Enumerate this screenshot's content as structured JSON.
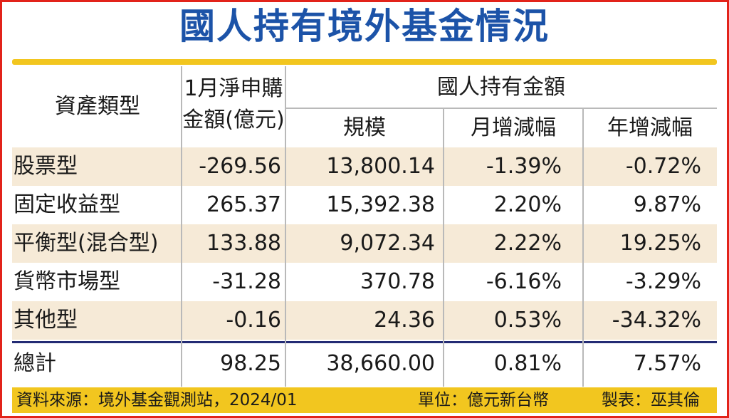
{
  "title": "國人持有境外基金情況",
  "header": {
    "asset_type": "資產類型",
    "net_sub_line1": "1月淨申購",
    "net_sub_line2": "金額(億元)",
    "holdings_group": "國人持有金額",
    "scale": "規模",
    "monthly_change": "月增減幅",
    "yearly_change": "年增減幅"
  },
  "rows": [
    {
      "type": "股票型",
      "net": "-269.56",
      "scale": "13,800.14",
      "mom": "-1.39%",
      "yoy": "-0.72%"
    },
    {
      "type": "固定收益型",
      "net": "265.37",
      "scale": "15,392.38",
      "mom": "2.20%",
      "yoy": "9.87%"
    },
    {
      "type": "平衡型(混合型)",
      "net": "133.88",
      "scale": "9,072.34",
      "mom": "2.22%",
      "yoy": "19.25%"
    },
    {
      "type": "貨幣市場型",
      "net": "-31.28",
      "scale": "370.78",
      "mom": "-6.16%",
      "yoy": "-3.29%"
    },
    {
      "type": "其他型",
      "net": "-0.16",
      "scale": "24.36",
      "mom": "0.53%",
      "yoy": "-34.32%"
    }
  ],
  "total": {
    "type": "總計",
    "net": "98.25",
    "scale": "38,660.00",
    "mom": "0.81%",
    "yoy": "7.57%"
  },
  "footer": {
    "source": "資料來源：境外基金觀測站，2024/01",
    "unit": "單位：億元新台幣",
    "author": "製表：巫其倫"
  },
  "colors": {
    "title": "#1c53a8",
    "border": "#e2231a",
    "accent": "#f2c61f",
    "shaded_row": "#f6ead7",
    "total_rule": "#232b74"
  }
}
